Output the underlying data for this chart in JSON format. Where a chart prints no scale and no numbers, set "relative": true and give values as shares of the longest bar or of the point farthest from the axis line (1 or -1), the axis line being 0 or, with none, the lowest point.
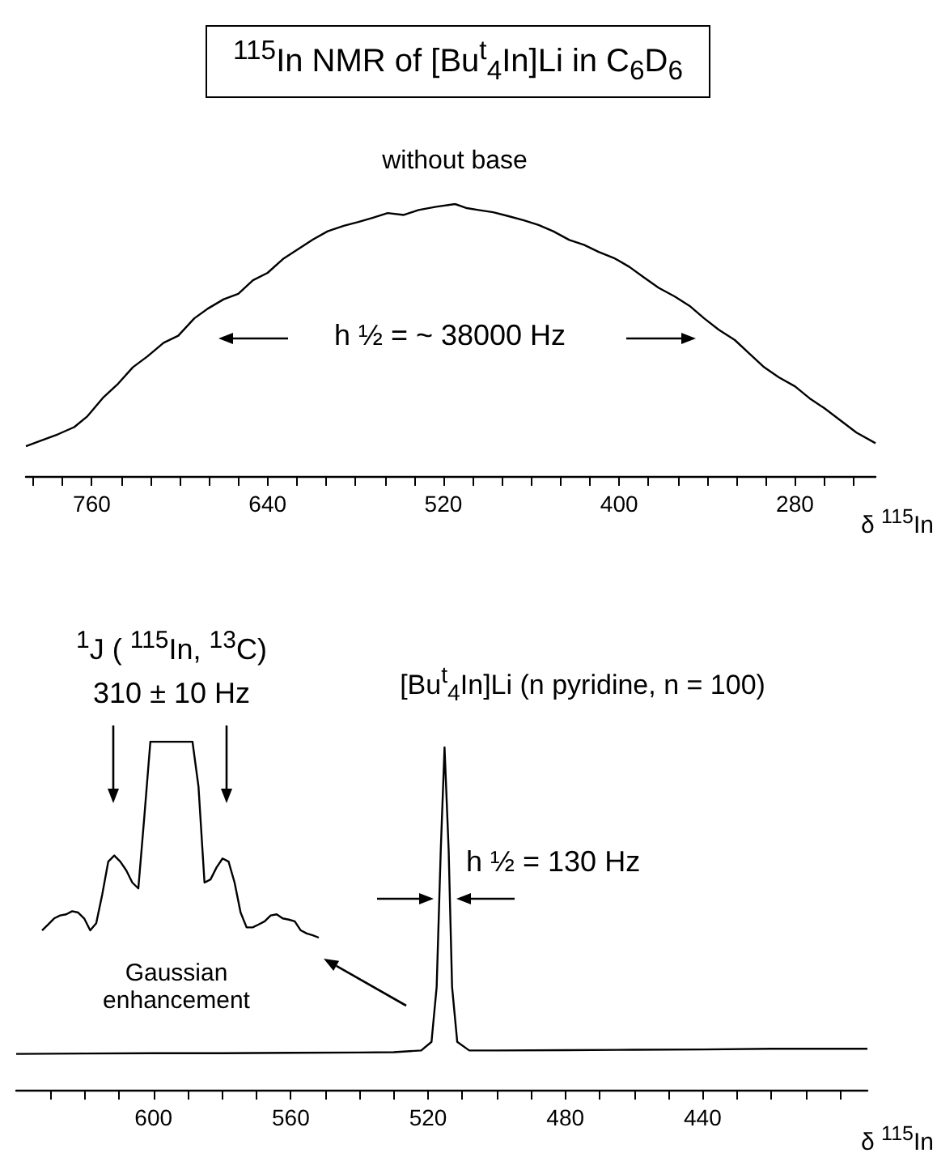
{
  "chart_data": [
    {
      "type": "line",
      "title": "$^{115}$In  NMR of  [Bu$^{t}$$_{4}$In]Li  in C$_{6}$D$_{6}$",
      "subtitle": "without base",
      "xlabel": "δ $^{115}$In",
      "relative": true,
      "annotations": [
        "h ½ = ~ 38000 Hz"
      ],
      "xlim": [
        805,
        225
      ],
      "xticks": [
        {
          "value": 800,
          "label": null
        },
        {
          "value": 780,
          "label": null
        },
        760,
        {
          "value": 740,
          "label": null
        },
        {
          "value": 720,
          "label": null
        },
        {
          "value": 700,
          "label": null
        },
        {
          "value": 680,
          "label": null
        },
        {
          "value": 660,
          "label": null
        },
        640,
        {
          "value": 620,
          "label": null
        },
        {
          "value": 600,
          "label": null
        },
        {
          "value": 580,
          "label": null
        },
        {
          "value": 560,
          "label": null
        },
        {
          "value": 540,
          "label": null
        },
        520,
        {
          "value": 500,
          "label": null
        },
        {
          "value": 480,
          "label": null
        },
        {
          "value": 460,
          "label": null
        },
        {
          "value": 440,
          "label": null
        },
        {
          "value": 420,
          "label": null
        },
        400,
        {
          "value": 380,
          "label": null
        },
        {
          "value": 360,
          "label": null
        },
        {
          "value": 340,
          "label": null
        },
        {
          "value": 320,
          "label": null
        },
        {
          "value": 300,
          "label": null
        },
        280,
        {
          "value": 260,
          "label": null
        },
        {
          "value": 240,
          "label": null
        }
      ],
      "x": [
        805,
        795,
        783,
        772,
        763,
        752,
        742,
        732,
        722,
        711,
        701,
        690,
        681,
        670,
        660,
        650,
        640,
        629,
        619,
        609,
        599,
        588,
        578,
        568,
        558,
        547,
        537,
        525,
        512,
        504,
        496,
        486,
        476,
        465,
        455,
        445,
        434,
        424,
        414,
        403,
        393,
        383,
        373,
        362,
        352,
        342,
        332,
        321,
        311,
        301,
        291,
        280,
        270,
        260,
        250,
        238,
        225
      ],
      "series": [
        {
          "color": "#000000",
          "values": [
            0.11,
            0.13,
            0.154,
            0.18,
            0.22,
            0.29,
            0.34,
            0.4,
            0.44,
            0.49,
            0.516,
            0.58,
            0.615,
            0.65,
            0.67,
            0.72,
            0.747,
            0.8,
            0.835,
            0.87,
            0.9,
            0.92,
            0.934,
            0.95,
            0.967,
            0.96,
            0.978,
            0.99,
            1,
            0.985,
            0.978,
            0.97,
            0.956,
            0.94,
            0.923,
            0.9,
            0.868,
            0.85,
            0.824,
            0.8,
            0.769,
            0.73,
            0.692,
            0.66,
            0.626,
            0.58,
            0.538,
            0.5,
            0.45,
            0.4,
            0.363,
            0.33,
            0.286,
            0.25,
            0.209,
            0.16,
            0.121
          ]
        }
      ]
    },
    {
      "type": "line",
      "title": "[Bu$^{t}$$_{4}$In]Li  (n pyridine, n = 100)",
      "xlabel": "δ $^{115}$In",
      "relative": true,
      "annotations": [
        "h ½ = 130 Hz",
        "Gaussian enhancement"
      ],
      "xlim": [
        640,
        392
      ],
      "xticks": [
        {
          "value": 630,
          "label": null
        },
        {
          "value": 620,
          "label": null
        },
        {
          "value": 610,
          "label": null
        },
        600,
        {
          "value": 590,
          "label": null
        },
        {
          "value": 580,
          "label": null
        },
        {
          "value": 570,
          "label": null
        },
        560,
        {
          "value": 550,
          "label": null
        },
        {
          "value": 540,
          "label": null
        },
        {
          "value": 530,
          "label": null
        },
        520,
        {
          "value": 510,
          "label": null
        },
        {
          "value": 500,
          "label": null
        },
        {
          "value": 490,
          "label": null
        },
        480,
        {
          "value": 470,
          "label": null
        },
        {
          "value": 460,
          "label": null
        },
        {
          "value": 450,
          "label": null
        },
        440,
        {
          "value": 430,
          "label": null
        },
        {
          "value": 420,
          "label": null
        },
        {
          "value": 410,
          "label": null
        },
        {
          "value": 400,
          "label": null
        }
      ],
      "x": [
        640,
        620,
        600,
        580,
        560,
        540,
        530,
        522,
        519,
        517.5,
        516.3,
        515.2,
        514,
        513,
        511.5,
        508,
        500,
        480,
        460,
        440,
        420,
        400,
        392
      ],
      "series": [
        {
          "color": "#000000",
          "values": [
            0.105,
            0.106,
            0.107,
            0.107,
            0.108,
            0.109,
            0.11,
            0.115,
            0.14,
            0.3,
            0.7,
            1,
            0.7,
            0.3,
            0.14,
            0.115,
            0.115,
            0.116,
            0.117,
            0.118,
            0.12,
            0.12,
            0.12
          ]
        }
      ]
    },
    {
      "type": "line",
      "relative": true,
      "tick_labels": false,
      "annotations": [
        "$^{1}$J ( $^{115}$In, $^{13}$C)",
        "310 ± 10 Hz"
      ],
      "categories": [
        null,
        null,
        null,
        null,
        null,
        null,
        null,
        null,
        null,
        null,
        null,
        null,
        null,
        null,
        null,
        null,
        null,
        null,
        null,
        null,
        null,
        null,
        null,
        null,
        null,
        null,
        null,
        null,
        null,
        null,
        null,
        null,
        null,
        null,
        null,
        null,
        null,
        null,
        null,
        null,
        null,
        null,
        null,
        null,
        null,
        null,
        null
      ],
      "series": [
        {
          "color": "#000000",
          "values": [
            0.037,
            0.067,
            0.098,
            0.113,
            0.119,
            0.135,
            0.128,
            0.098,
            0.037,
            0.073,
            0.22,
            0.388,
            0.419,
            0.388,
            0.343,
            0.281,
            0.251,
            0.618,
            1,
            1,
            1,
            1,
            1,
            1,
            1,
            1,
            0.771,
            0.281,
            0.297,
            0.358,
            0.404,
            0.388,
            0.281,
            0.128,
            0.052,
            0.052,
            0.067,
            0.083,
            0.113,
            0.119,
            0.098,
            0.092,
            0.083,
            0.037,
            0.021,
            0.012,
            0
          ]
        }
      ]
    }
  ]
}
